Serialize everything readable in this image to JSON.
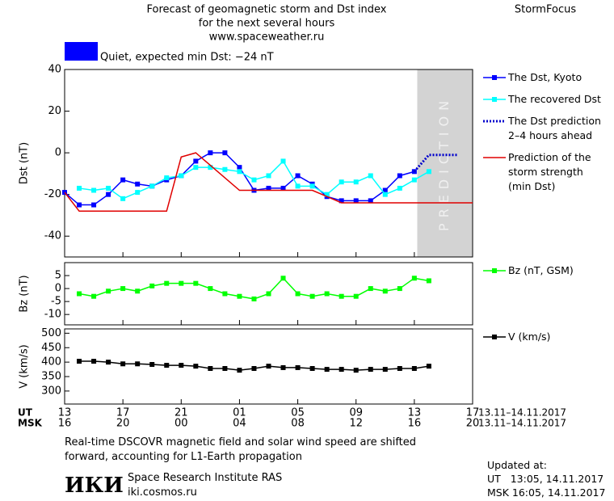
{
  "header": {
    "title_lines": [
      "Forecast of geomagnetic storm and Dst index",
      "for the next several hours",
      "www.spaceweather.ru"
    ],
    "brand": "StormFocus",
    "status": "Quiet, expected min Dst: −24 nT",
    "status_color": "#0000ff"
  },
  "chart_data": [
    {
      "type": "line",
      "ylabel": "Dst (nT)",
      "xlim": [
        0,
        28
      ],
      "ylim": [
        -50,
        40
      ],
      "yticks": [
        -40,
        -20,
        0,
        20,
        40
      ],
      "prediction_zone": {
        "xlim": [
          24.2,
          28
        ],
        "label": "PREDICTION",
        "color": "#d3d3d3"
      },
      "series": [
        {
          "name": "The Dst, Kyoto",
          "color": "#0000ff",
          "marker": "square",
          "x": [
            0,
            1,
            2,
            3,
            4,
            5,
            6,
            7,
            8,
            9,
            10,
            11,
            12,
            13,
            14,
            15,
            16,
            17,
            18,
            19,
            20,
            21,
            22,
            23,
            24
          ],
          "values": [
            -19,
            -25,
            -25,
            -20,
            -13,
            -15,
            -16,
            -13,
            -11,
            -4,
            0,
            0,
            -7,
            -18,
            -17,
            -17,
            -11,
            -15,
            -21,
            -23,
            -23,
            -23,
            -18,
            -11,
            -9
          ]
        },
        {
          "name": "The recovered Dst",
          "color": "#00ffff",
          "marker": "square",
          "x": [
            1,
            2,
            3,
            4,
            5,
            6,
            7,
            8,
            9,
            10,
            11,
            12,
            13,
            14,
            15,
            16,
            17,
            18,
            19,
            20,
            21,
            22,
            23,
            24,
            25
          ],
          "values": [
            -17,
            -18,
            -17,
            -22,
            -19,
            -16,
            -12,
            -11,
            -7,
            -7,
            -8,
            -9,
            -13,
            -11,
            -4,
            -16,
            -16,
            -20,
            -14,
            -14,
            -11,
            -20,
            -17,
            -13,
            -9
          ]
        },
        {
          "name": "The Dst prediction\n2–4 hours ahead",
          "color": "#0000cc",
          "style": "dotted",
          "x": [
            24,
            25,
            26,
            27
          ],
          "values": [
            -9,
            -1,
            -1,
            -1
          ]
        },
        {
          "name": "Prediction of the\nstorm strength\n(min Dst)",
          "color": "#e00000",
          "x": [
            0,
            1,
            7,
            8,
            9,
            12,
            17,
            18,
            19,
            28
          ],
          "values": [
            -19,
            -28,
            -28,
            -2,
            0,
            -18,
            -18,
            -21,
            -24,
            -24
          ]
        }
      ]
    },
    {
      "type": "line",
      "ylabel": "Bz (nT)",
      "xlim": [
        0,
        28
      ],
      "ylim": [
        -14,
        10
      ],
      "yticks": [
        -10,
        -5,
        0,
        5
      ],
      "series": [
        {
          "name": "Bz (nT, GSM)",
          "color": "#00ff00",
          "marker": "square",
          "x": [
            1,
            2,
            3,
            4,
            5,
            6,
            7,
            8,
            9,
            10,
            11,
            12,
            13,
            14,
            15,
            16,
            17,
            18,
            19,
            20,
            21,
            22,
            23,
            24,
            25
          ],
          "values": [
            -2,
            -3,
            -1,
            0,
            -1,
            1,
            2,
            2,
            2,
            0,
            -2,
            -3,
            -4,
            -2,
            4,
            -2,
            -3,
            -2,
            -3,
            -3,
            0,
            -1,
            0,
            4,
            3
          ]
        }
      ]
    },
    {
      "type": "line",
      "ylabel": "V (km/s)",
      "xlim": [
        0,
        28
      ],
      "ylim": [
        255,
        515
      ],
      "yticks": [
        300,
        350,
        400,
        450,
        500
      ],
      "xlabel": "UT",
      "xlabel_msk": "MSK",
      "x_range_ut": "13.11–14.11.2017",
      "x_range_msk": "13.11–14.11.2017",
      "xticks": [
        {
          "value": 0,
          "label": "13"
        },
        {
          "value": 4,
          "label": "17"
        },
        {
          "value": 8,
          "label": "21"
        },
        {
          "value": 12,
          "label": "01"
        },
        {
          "value": 16,
          "label": "05"
        },
        {
          "value": 20,
          "label": "09"
        },
        {
          "value": 24,
          "label": "13"
        },
        {
          "value": 28,
          "label": "17"
        }
      ],
      "xticks_msk": [
        {
          "value": 0,
          "label": "16"
        },
        {
          "value": 4,
          "label": "20"
        },
        {
          "value": 8,
          "label": "00"
        },
        {
          "value": 12,
          "label": "04"
        },
        {
          "value": 16,
          "label": "08"
        },
        {
          "value": 20,
          "label": "12"
        },
        {
          "value": 24,
          "label": "16"
        },
        {
          "value": 28,
          "label": "20"
        }
      ],
      "series": [
        {
          "name": "V (km/s)",
          "color": "#000000",
          "marker": "square",
          "x": [
            1,
            2,
            3,
            4,
            5,
            6,
            7,
            8,
            9,
            10,
            11,
            12,
            13,
            14,
            15,
            16,
            17,
            18,
            19,
            20,
            21,
            22,
            23,
            24,
            25
          ],
          "values": [
            403,
            403,
            400,
            394,
            394,
            392,
            389,
            389,
            386,
            378,
            378,
            372,
            378,
            386,
            381,
            381,
            378,
            375,
            375,
            372,
            375,
            375,
            378,
            378,
            386
          ]
        }
      ]
    }
  ],
  "footer": {
    "note_lines": [
      "Real-time DSCOVR magnetic field and solar wind speed are shifted",
      "forward, accounting for L1-Earth propagation"
    ],
    "logo": "ИКИ",
    "institute": "Space Research Institute RAS",
    "site": "iki.cosmos.ru",
    "updated_label": "Updated at:",
    "updated_ut": "UT   13:05, 14.11.2017",
    "updated_msk": "MSK 16:05, 14.11.2017"
  }
}
